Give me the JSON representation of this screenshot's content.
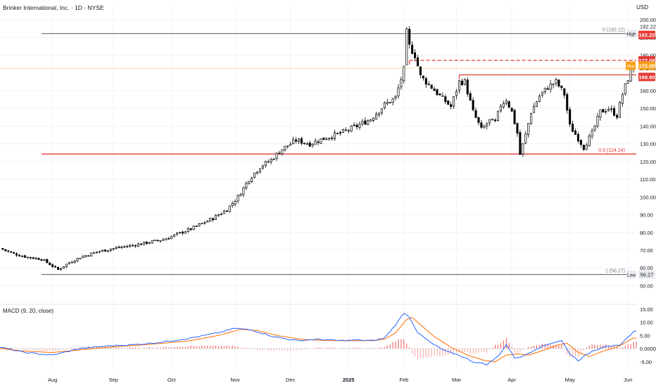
{
  "header": {
    "title": "Brinker International, Inc. · 1D · NYSE",
    "currency": "USD"
  },
  "colors": {
    "up": "#ffffff",
    "down": "#000000",
    "wick": "#000000",
    "level_red": "#e53935",
    "level_gray": "#555555",
    "badge_red": "#e53935",
    "badge_orange": "#f7a21b",
    "macd_line": "#2962ff",
    "signal_line": "#ff6d00",
    "hist_red": "#ef5350",
    "grid": "#f0f3fa"
  },
  "chart_data": {
    "type": "candlestick",
    "price_axis": {
      "ticks": [
        50,
        60,
        70,
        80,
        90,
        100,
        110,
        120,
        130,
        140,
        150,
        160,
        172.63,
        180,
        190,
        200
      ],
      "tick_labels": [
        "50.00",
        "60.00",
        "70.00",
        "80.00",
        "90.00",
        "100.00",
        "110.00",
        "120.00",
        "130.00",
        "140.00",
        "150.00",
        "160.00",
        "172.63",
        "180.00",
        "190.00",
        "200.00"
      ],
      "range": [
        47,
        204
      ]
    },
    "time_axis": {
      "labels": [
        {
          "text": "Aug",
          "day": 0
        },
        {
          "text": "Sep",
          "day": 22
        },
        {
          "text": "Oct",
          "day": 43
        },
        {
          "text": "Nov",
          "day": 66
        },
        {
          "text": "Dec",
          "day": 86
        },
        {
          "text": "2025",
          "day": 107
        },
        {
          "text": "Feb",
          "day": 127
        },
        {
          "text": "Mar",
          "day": 146
        },
        {
          "text": "Apr",
          "day": 166
        },
        {
          "text": "May",
          "day": 187
        },
        {
          "text": "Jun",
          "day": 208
        }
      ],
      "day_range": [
        -19,
        211
      ]
    },
    "anchors": [
      [
        -19,
        71
      ],
      [
        -14,
        68
      ],
      [
        -9,
        66
      ],
      [
        -4,
        65
      ],
      [
        2,
        59
      ],
      [
        6,
        63
      ],
      [
        10,
        66
      ],
      [
        16,
        69
      ],
      [
        22,
        71
      ],
      [
        30,
        73
      ],
      [
        40,
        76
      ],
      [
        50,
        82
      ],
      [
        58,
        88
      ],
      [
        63,
        93
      ],
      [
        67,
        100
      ],
      [
        71,
        110
      ],
      [
        75,
        117
      ],
      [
        79,
        121
      ],
      [
        83,
        127
      ],
      [
        88,
        132
      ],
      [
        93,
        130
      ],
      [
        98,
        133
      ],
      [
        104,
        136
      ],
      [
        110,
        140
      ],
      [
        115,
        144
      ],
      [
        120,
        152
      ],
      [
        124,
        156
      ],
      [
        127,
        172
      ],
      [
        128,
        193
      ],
      [
        129,
        185
      ],
      [
        131,
        180
      ],
      [
        133,
        168
      ],
      [
        137,
        162
      ],
      [
        140,
        157
      ],
      [
        144,
        151
      ],
      [
        147,
        165
      ],
      [
        149,
        165
      ],
      [
        152,
        148
      ],
      [
        155,
        138
      ],
      [
        158,
        143
      ],
      [
        160,
        142
      ],
      [
        162,
        152
      ],
      [
        164,
        155
      ],
      [
        166,
        148
      ],
      [
        168,
        136
      ],
      [
        169,
        124
      ],
      [
        171,
        135
      ],
      [
        173,
        148
      ],
      [
        176,
        157
      ],
      [
        179,
        162
      ],
      [
        182,
        165
      ],
      [
        185,
        158
      ],
      [
        187,
        140
      ],
      [
        190,
        133
      ],
      [
        192,
        128
      ],
      [
        195,
        136
      ],
      [
        198,
        148
      ],
      [
        201,
        150
      ],
      [
        204,
        146
      ],
      [
        206,
        158
      ],
      [
        208,
        167
      ],
      [
        210,
        175
      ]
    ],
    "levels": [
      {
        "name": "0 (192.22)",
        "value": 192.22,
        "style": "solid-gray",
        "from_day": -4,
        "badge": "High",
        "badge_value": "192.22"
      },
      {
        "name": "1 (56.27)",
        "value": 56.27,
        "style": "solid-gray",
        "from_day": -4,
        "badge": "Low",
        "badge_value": "56.27"
      },
      {
        "name": "0.5 (124.24)",
        "value": 124.24,
        "style": "solid-red",
        "from_day": -4
      },
      {
        "value": 177.08,
        "style": "dashed-red",
        "from_day": 129,
        "badge_value": "177.08"
      },
      {
        "value": 168.9,
        "style": "solid-red",
        "from_day": 147,
        "badge_value": "168.90"
      }
    ],
    "last_price": 172.63,
    "pre_market": {
      "label": "Pre",
      "value": "172.00"
    },
    "macd": {
      "title": "MACD (9, 20, close)",
      "ticks": [
        15,
        10,
        5,
        0,
        -5
      ],
      "tick_labels": [
        "15.00",
        "10.00",
        "5.00",
        "0.0000",
        "-5.00"
      ],
      "range": [
        -8,
        16
      ],
      "macd_anchors": [
        [
          -19,
          0.5
        ],
        [
          -10,
          -1.5
        ],
        [
          0,
          -2.5
        ],
        [
          10,
          0
        ],
        [
          20,
          1
        ],
        [
          30,
          1.5
        ],
        [
          40,
          2.5
        ],
        [
          50,
          4
        ],
        [
          60,
          6
        ],
        [
          66,
          7.7
        ],
        [
          72,
          7
        ],
        [
          80,
          4.5
        ],
        [
          88,
          3
        ],
        [
          96,
          3.5
        ],
        [
          104,
          3
        ],
        [
          110,
          3.2
        ],
        [
          116,
          3
        ],
        [
          120,
          4
        ],
        [
          124,
          9
        ],
        [
          127,
          13.5
        ],
        [
          129,
          12
        ],
        [
          132,
          6
        ],
        [
          137,
          2
        ],
        [
          142,
          -1
        ],
        [
          147,
          -2.5
        ],
        [
          152,
          -5
        ],
        [
          157,
          -6
        ],
        [
          161,
          -3
        ],
        [
          164,
          1.5
        ],
        [
          167,
          -3.5
        ],
        [
          170,
          -3
        ],
        [
          175,
          0
        ],
        [
          180,
          2
        ],
        [
          184,
          3
        ],
        [
          187,
          -2
        ],
        [
          190,
          -4.5
        ],
        [
          195,
          -1
        ],
        [
          200,
          1
        ],
        [
          205,
          1
        ],
        [
          210,
          6.5
        ]
      ],
      "signal_anchors": [
        [
          -19,
          0
        ],
        [
          -10,
          -1
        ],
        [
          0,
          -1.5
        ],
        [
          10,
          -0.5
        ],
        [
          20,
          0.5
        ],
        [
          30,
          1.2
        ],
        [
          40,
          2
        ],
        [
          50,
          3
        ],
        [
          60,
          5
        ],
        [
          68,
          7.3
        ],
        [
          74,
          6.8
        ],
        [
          82,
          4.8
        ],
        [
          90,
          3.5
        ],
        [
          100,
          3
        ],
        [
          110,
          3
        ],
        [
          116,
          3
        ],
        [
          120,
          3.5
        ],
        [
          124,
          6
        ],
        [
          128,
          11
        ],
        [
          130,
          11.8
        ],
        [
          133,
          9
        ],
        [
          138,
          4.5
        ],
        [
          144,
          0.5
        ],
        [
          150,
          -2.5
        ],
        [
          156,
          -4.5
        ],
        [
          160,
          -5
        ],
        [
          164,
          -2.5
        ],
        [
          168,
          -2
        ],
        [
          172,
          -2.5
        ],
        [
          178,
          -0.5
        ],
        [
          183,
          1.5
        ],
        [
          186,
          2
        ],
        [
          190,
          -1.5
        ],
        [
          194,
          -3
        ],
        [
          199,
          -1
        ],
        [
          204,
          0.5
        ],
        [
          210,
          4
        ]
      ]
    }
  }
}
